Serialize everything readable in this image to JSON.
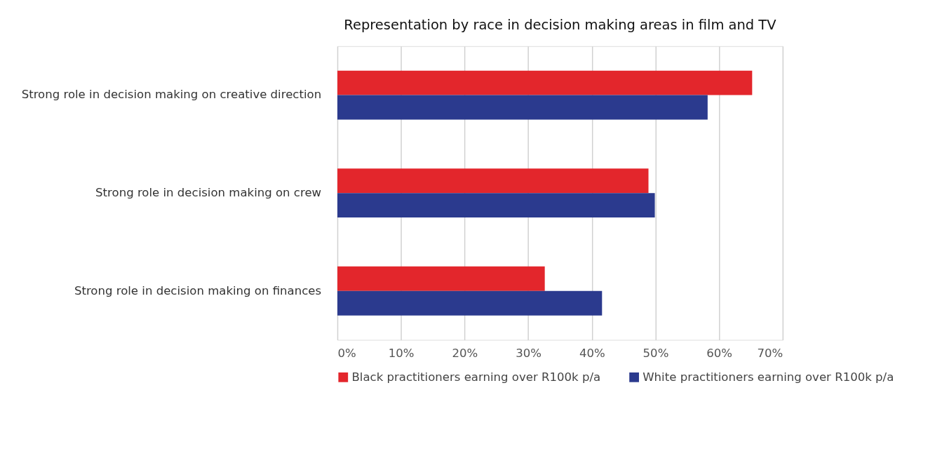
{
  "chart_data": {
    "type": "bar",
    "orientation": "horizontal",
    "title": "Representation by race in decision making areas in film and TV",
    "categories": [
      "Strong role in decision making on creative direction",
      "Strong role in decision making on crew",
      "Strong role in decision making on finances"
    ],
    "series": [
      {
        "name": "Black practitioners earning over R100k p/a",
        "color": "#e3262c",
        "values": [
          65.2,
          48.9,
          32.6
        ]
      },
      {
        "name": "White practitioners earning over R100k p/a",
        "color": "#2b3a8e",
        "values": [
          58.2,
          49.9,
          41.6
        ]
      }
    ],
    "xlim": [
      0,
      70
    ],
    "xticks": [
      {
        "value": 0,
        "label": "0%"
      },
      {
        "value": 10,
        "label": "10%"
      },
      {
        "value": 20,
        "label": "20%"
      },
      {
        "value": 30,
        "label": "30%"
      },
      {
        "value": 40,
        "label": "40%"
      },
      {
        "value": 50,
        "label": "50%"
      },
      {
        "value": 60,
        "label": "60%"
      },
      {
        "value": 70,
        "label": "70%"
      }
    ],
    "grid": "x",
    "legend": "bottom"
  }
}
